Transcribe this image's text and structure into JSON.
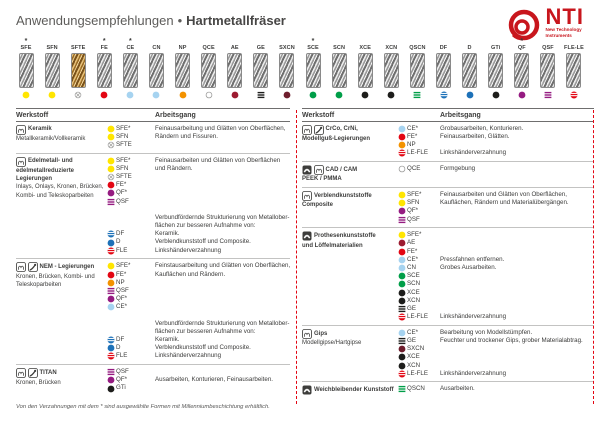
{
  "header": {
    "title_regular": "Anwendungsempfehlungen",
    "title_sep": "•",
    "title_bold": "Hartmetallfräser",
    "logo": {
      "text": "NTI",
      "tagline1": "New Technology",
      "tagline2": "Instruments"
    }
  },
  "colors": {
    "brand_red": "#C8161D",
    "accent_red": "#E30613",
    "text_dark": "#3C3C3B"
  },
  "burs": [
    {
      "label": "SFE",
      "star": "*",
      "metal": "silver"
    },
    {
      "label": "SFN",
      "star": "",
      "metal": "silver"
    },
    {
      "label": "SFTE",
      "star": "",
      "metal": "gold"
    },
    {
      "label": "FE",
      "star": "*",
      "metal": "silver"
    },
    {
      "label": "CE",
      "star": "*",
      "metal": "silver"
    },
    {
      "label": "CN",
      "star": "",
      "metal": "silver"
    },
    {
      "label": "NP",
      "star": "",
      "metal": "silver"
    },
    {
      "label": "QCE",
      "star": "",
      "metal": "silver"
    },
    {
      "label": "AE",
      "star": "",
      "metal": "silver"
    },
    {
      "label": "GE",
      "star": "",
      "metal": "silver"
    },
    {
      "label": "SXCN",
      "star": "",
      "metal": "silver"
    },
    {
      "label": "SCE",
      "star": "*",
      "metal": "silver"
    },
    {
      "label": "SCN",
      "star": "",
      "metal": "silver"
    },
    {
      "label": "XCE",
      "star": "",
      "metal": "silver"
    },
    {
      "label": "XCN",
      "star": "",
      "metal": "silver"
    },
    {
      "label": "QSCN",
      "star": "",
      "metal": "silver"
    },
    {
      "label": "DF",
      "star": "",
      "metal": "silver"
    },
    {
      "label": "D",
      "star": "",
      "metal": "silver"
    },
    {
      "label": "GTi",
      "star": "",
      "metal": "silver"
    },
    {
      "label": "QF",
      "star": "*",
      "metal": "silver"
    },
    {
      "label": "QSF",
      "star": "",
      "metal": "silver"
    },
    {
      "label": "FLE-LE",
      "star": "",
      "metal": "silver"
    }
  ],
  "dots": {
    "SFE": {
      "type": "solid",
      "color": "#FFE500"
    },
    "SFN": {
      "type": "solid",
      "color": "#FFE500"
    },
    "SFTE": {
      "type": "cross",
      "color": "#9D9D9C"
    },
    "FE": {
      "type": "solid",
      "color": "#E30613"
    },
    "CE": {
      "type": "solid",
      "color": "#A6D3F0"
    },
    "CN": {
      "type": "solid",
      "color": "#A6D3F0"
    },
    "NP": {
      "type": "solid",
      "color": "#F39200"
    },
    "QCE": {
      "type": "outline",
      "color": "#9D9D9C"
    },
    "AE": {
      "type": "solid",
      "color": "#9C1B30"
    },
    "GE": {
      "type": "bars",
      "color": "#1D1D1B"
    },
    "SXCN": {
      "type": "solid",
      "color": "#6E1E2D"
    },
    "SCE": {
      "type": "solid",
      "color": "#009E48"
    },
    "SCN": {
      "type": "solid",
      "color": "#009E48"
    },
    "XCE": {
      "type": "solid",
      "color": "#1D1D1B"
    },
    "XCN": {
      "type": "solid",
      "color": "#1D1D1B"
    },
    "QSCN": {
      "type": "bars",
      "color": "#009E48"
    },
    "DF": {
      "type": "striped",
      "color": "#1D71B8"
    },
    "D": {
      "type": "solid",
      "color": "#1D71B8"
    },
    "GTi": {
      "type": "solid",
      "color": "#1D1D1B"
    },
    "QF": {
      "type": "solid",
      "color": "#951B81"
    },
    "QSF": {
      "type": "bars",
      "color": "#951B81"
    },
    "FLE": {
      "type": "striped",
      "color": "#E30613"
    },
    "LE-FLE": {
      "type": "striped",
      "color": "#E30613"
    },
    "FLE-LE": {
      "type": "striped",
      "color": "#E30613"
    }
  },
  "panels": [
    {
      "header": {
        "werkstoff": "Werkstoff",
        "arbeitsgang": "Arbeitsgang"
      },
      "rows": [
        {
          "material": {
            "icons": [
              "crown-icon"
            ],
            "bold0": "Keramik",
            "plain": [
              "Metallkeramik/Vollkeramik"
            ]
          },
          "lines": [
            {
              "c": "SFE*",
              "t": "Feinausarbeitung und Glätten von Oberflächen,"
            },
            {
              "c": "SFN",
              "t": "Rändern und Fissuren."
            },
            {
              "c": "SFTE"
            }
          ]
        },
        {
          "material": {
            "icons": [
              "crown-icon"
            ],
            "bold0": "Edelmetall- und",
            "bold_rest": [
              "edelmetallreduzierte",
              "Legierungen"
            ],
            "plain": [
              "Inlays, Onlays, Kronen, Brücken,",
              "Kombi- und Teleskoparbeiten"
            ]
          },
          "lines": [
            {
              "c": "SFE*",
              "t": "Feinausarbeiten und Glätten von Oberflächen"
            },
            {
              "c": "SFN",
              "t": "und Rändern."
            },
            {
              "c": "SFTE"
            },
            {
              "c": "FE*"
            },
            {
              "c": "QF*"
            },
            {
              "c": "QSF"
            },
            {},
            {
              "t": "Verbundfördernde Strukturierung von Metallober-"
            },
            {
              "t": "flächen zur besseren Aufnahme von:"
            },
            {
              "c": "DF",
              "t": "Keramik."
            },
            {
              "c": "D",
              "t": "Verblendkunststoff und Composite."
            },
            {
              "c": "FLE",
              "t": "Linkshänderverzahnung"
            }
          ]
        },
        {
          "material": {
            "icons": [
              "crown-icon",
              "clasp-icon"
            ],
            "bold0": "NEM - Legierungen",
            "plain": [
              "Kronen, Brücken, Kombi- und",
              "Teleskoparbeiten"
            ]
          },
          "lines": [
            {
              "c": "SFE*",
              "t": "Feinstausarbeitung und Glätten von Oberflächen,"
            },
            {
              "c": "FE*",
              "t": "Kauflächen und Rändern."
            },
            {
              "c": "NP"
            },
            {
              "c": "QSF"
            },
            {
              "c": "QF*"
            },
            {
              "c": "CE*"
            },
            {},
            {
              "t": "Verbundfördernde Strukturierung von Metallober-"
            },
            {
              "t": "flächen zur besseren Aufnahme von:"
            },
            {
              "c": "DF",
              "t": "Keramik."
            },
            {
              "c": "D",
              "t": "Verblendkunststoff und Composite."
            },
            {
              "c": "FLE",
              "t": "Linkshänderverzahnung"
            }
          ]
        },
        {
          "material": {
            "icons": [
              "crown-icon",
              "clasp-icon"
            ],
            "bold0": "TITAN",
            "plain": [
              "Kronen, Brücken"
            ]
          },
          "lines": [
            {
              "c": "QSF"
            },
            {
              "c": "QF*",
              "t": "Ausarbeiten, Konturieren, Feinausarbeiten."
            },
            {
              "c": "GTi"
            }
          ]
        }
      ]
    },
    {
      "header": {
        "werkstoff": "Werkstoff",
        "arbeitsgang": "Arbeitsgang"
      },
      "rows": [
        {
          "material": {
            "icons": [
              "crown-icon",
              "clasp-icon"
            ],
            "bold0": "CrCo, CrNi,",
            "bold_rest": [
              "Modellguß-Legierungen"
            ]
          },
          "lines": [
            {
              "c": "CE*",
              "t": "Grobausarbeiten, Konturieren."
            },
            {
              "c": "FE*",
              "t": "Feinausarbeiten, Glätten."
            },
            {
              "c": "NP"
            },
            {
              "c": "LE-FLE",
              "t": "Linkshänderverzahnung"
            }
          ]
        },
        {
          "material": {
            "icons": [
              "denture-icon",
              "crown-icon"
            ],
            "bold0": "CAD / CAM",
            "bold_rest": [
              "PEEK / PMMA"
            ]
          },
          "lines": [
            {
              "c": "QCE",
              "t": "Formgebung"
            }
          ]
        },
        {
          "material": {
            "icons": [
              "crown-icon"
            ],
            "bold0": "Verblendkunststoffe",
            "bold_rest": [
              "Composite"
            ]
          },
          "lines": [
            {
              "c": "SFE*",
              "t": "Feinausarbeiten und Glätten von Oberflächen,"
            },
            {
              "c": "SFN",
              "t": "Kauflächen, Rändern und Materialübergängen."
            },
            {
              "c": "QF*"
            },
            {
              "c": "QSF"
            }
          ]
        },
        {
          "material": {
            "icons": [
              "denture-icon"
            ],
            "bold0": "Prothesenkunststoffe",
            "bold_rest": [
              "und Löffelmaterialien"
            ]
          },
          "lines": [
            {
              "c": "SFE*"
            },
            {
              "c": "AE"
            },
            {
              "c": "FE*"
            },
            {
              "c": "CE*",
              "t": "Pressfahnen entfernen."
            },
            {
              "c": "CN",
              "t": "Grobes Ausarbeiten."
            },
            {
              "c": "SCE"
            },
            {
              "c": "SCN"
            },
            {
              "c": "XCE"
            },
            {
              "c": "XCN"
            },
            {
              "c": "GE"
            },
            {
              "c": "LE-FLE",
              "t": "Linkshänderverzahnung"
            }
          ]
        },
        {
          "material": {
            "icons": [
              "crown-icon"
            ],
            "bold0": "Gips",
            "plain": [
              "Modellgipse/Hartgipse"
            ]
          },
          "lines": [
            {
              "c": "CE*",
              "t": "Bearbeitung von Modellstümpfen."
            },
            {
              "c": "GE",
              "t": "Feuchter und trockener Gips, grober Materialabtrag."
            },
            {
              "c": "SXCN"
            },
            {
              "c": "XCE"
            },
            {
              "c": "XCN"
            },
            {
              "c": "LE-FLE",
              "t": "Linkshänderverzahnung"
            }
          ]
        },
        {
          "material": {
            "icons": [
              "denture-icon"
            ],
            "bold0": "Weichbleibender Kunststoff"
          },
          "lines": [
            {
              "c": "QSCN",
              "t": "Ausarbeiten."
            }
          ]
        }
      ]
    }
  ],
  "footer": {
    "note": "Von den Verzahnungen mit dem * sind ausgewählte Formen mit Millenniumbeschichtung erhältlich."
  }
}
